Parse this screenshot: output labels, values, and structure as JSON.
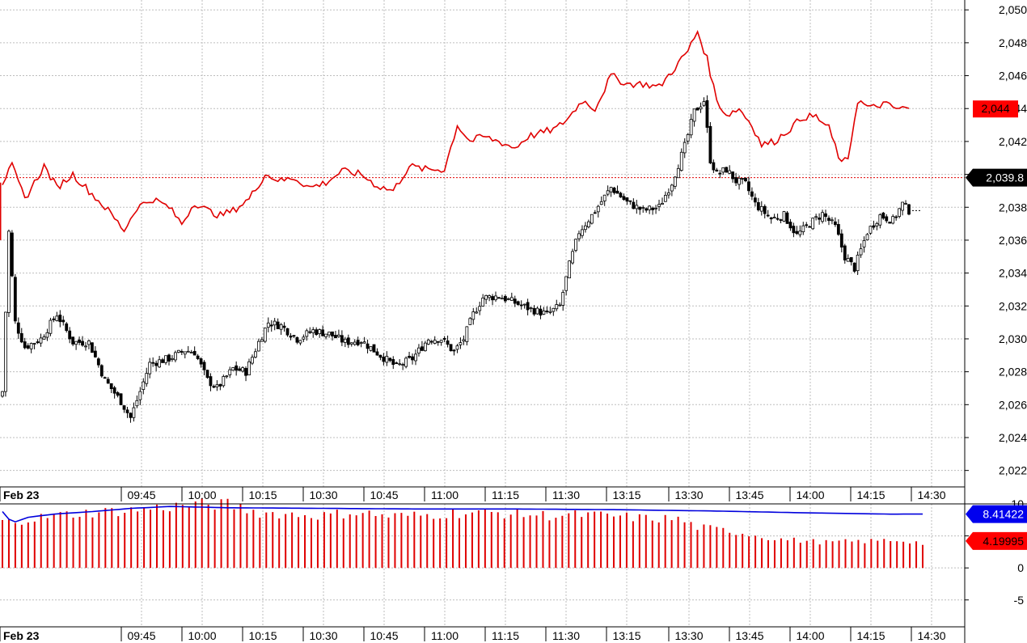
{
  "chart_data": [
    {
      "type": "candlestick",
      "name_hidden": true,
      "x_date_label": "Feb 23",
      "time_labels": [
        "09:45",
        "10:00",
        "10:15",
        "10:30",
        "10:45",
        "11:00",
        "11:15",
        "11:30",
        "13:15",
        "13:30",
        "13:45",
        "14:00",
        "14:15",
        "14:30"
      ],
      "y_ticks": [
        "2,022",
        "2,024",
        "2,026",
        "2,028",
        "2,030",
        "2,032",
        "2,034",
        "2,036",
        "2,038",
        "2,040",
        "2,042",
        "2,044",
        "2,046",
        "2,048",
        "2,050"
      ],
      "ylim": [
        2021.0,
        2050.6
      ],
      "grid": true,
      "candle_close_keypoints": [
        [
          0,
          2026.8
        ],
        [
          2,
          2036.5
        ],
        [
          4,
          2031.0
        ],
        [
          7,
          2029.5
        ],
        [
          12,
          2030.0
        ],
        [
          17,
          2031.5
        ],
        [
          22,
          2029.8
        ],
        [
          27,
          2029.8
        ],
        [
          32,
          2027.5
        ],
        [
          37,
          2026.2
        ],
        [
          40,
          2025.2
        ],
        [
          43,
          2026.8
        ],
        [
          46,
          2028.5
        ],
        [
          52,
          2028.8
        ],
        [
          57,
          2029.3
        ],
        [
          60,
          2029.2
        ],
        [
          64,
          2027.5
        ],
        [
          67,
          2027.0
        ],
        [
          72,
          2028.2
        ],
        [
          76,
          2028.0
        ],
        [
          80,
          2029.8
        ],
        [
          83,
          2031.0
        ],
        [
          87,
          2030.8
        ],
        [
          92,
          2030.0
        ],
        [
          97,
          2030.5
        ],
        [
          102,
          2030.3
        ],
        [
          107,
          2029.8
        ],
        [
          112,
          2029.9
        ],
        [
          118,
          2029.0
        ],
        [
          123,
          2028.3
        ],
        [
          128,
          2028.8
        ],
        [
          133,
          2030.0
        ],
        [
          137,
          2030.0
        ],
        [
          141,
          2029.2
        ],
        [
          144,
          2030.0
        ],
        [
          147,
          2031.5
        ],
        [
          150,
          2032.5
        ],
        [
          155,
          2032.6
        ],
        [
          160,
          2032.2
        ],
        [
          165,
          2031.8
        ],
        [
          170,
          2031.5
        ],
        [
          174,
          2032.0
        ],
        [
          177,
          2034.5
        ],
        [
          180,
          2036.5
        ],
        [
          184,
          2037.5
        ],
        [
          190,
          2039.2
        ],
        [
          195,
          2038.3
        ],
        [
          200,
          2037.8
        ],
        [
          205,
          2038.0
        ],
        [
          209,
          2039.5
        ],
        [
          213,
          2041.7
        ],
        [
          216,
          2043.8
        ],
        [
          219,
          2044.5
        ],
        [
          221,
          2040.9
        ],
        [
          223,
          2040.0
        ],
        [
          226,
          2040.3
        ],
        [
          229,
          2039.6
        ],
        [
          232,
          2039.4
        ],
        [
          235,
          2038.2
        ],
        [
          240,
          2037.3
        ],
        [
          244,
          2037.5
        ],
        [
          248,
          2036.3
        ],
        [
          252,
          2037.0
        ],
        [
          256,
          2037.6
        ],
        [
          260,
          2036.8
        ],
        [
          263,
          2035.0
        ],
        [
          266,
          2034.3
        ],
        [
          270,
          2036.5
        ],
        [
          274,
          2037.5
        ],
        [
          278,
          2037.2
        ],
        [
          281,
          2038.2
        ],
        [
          283,
          2037.8
        ]
      ],
      "candle_count": 284,
      "last_value_label": "2,039.8",
      "line_series": {
        "color": "#e00000",
        "last_value_label": "2,044",
        "keypoints": [
          [
            0,
            2039.5
          ],
          [
            3,
            2040.5
          ],
          [
            7,
            2038.5
          ],
          [
            13,
            2040.5
          ],
          [
            17,
            2039.2
          ],
          [
            22,
            2040.0
          ],
          [
            27,
            2039.0
          ],
          [
            33,
            2037.8
          ],
          [
            38,
            2036.6
          ],
          [
            42,
            2038.0
          ],
          [
            47,
            2038.5
          ],
          [
            52,
            2038.0
          ],
          [
            56,
            2037.0
          ],
          [
            60,
            2038.3
          ],
          [
            64,
            2037.8
          ],
          [
            68,
            2037.5
          ],
          [
            72,
            2037.8
          ],
          [
            77,
            2038.5
          ],
          [
            82,
            2040.0
          ],
          [
            87,
            2039.6
          ],
          [
            91,
            2039.8
          ],
          [
            96,
            2039.2
          ],
          [
            101,
            2039.5
          ],
          [
            106,
            2040.2
          ],
          [
            112,
            2040.0
          ],
          [
            117,
            2039.3
          ],
          [
            122,
            2039.0
          ],
          [
            127,
            2040.5
          ],
          [
            132,
            2040.3
          ],
          [
            138,
            2040.3
          ],
          [
            142,
            2043.0
          ],
          [
            146,
            2042.0
          ],
          [
            150,
            2042.3
          ],
          [
            155,
            2042.0
          ],
          [
            160,
            2041.6
          ],
          [
            164,
            2042.3
          ],
          [
            168,
            2042.5
          ],
          [
            173,
            2042.8
          ],
          [
            177,
            2043.5
          ],
          [
            181,
            2044.5
          ],
          [
            185,
            2044.0
          ],
          [
            190,
            2046.0
          ],
          [
            195,
            2045.5
          ],
          [
            200,
            2045.5
          ],
          [
            205,
            2045.3
          ],
          [
            210,
            2046.5
          ],
          [
            214,
            2047.5
          ],
          [
            217,
            2048.7
          ],
          [
            220,
            2047.0
          ],
          [
            223,
            2044.5
          ],
          [
            226,
            2043.6
          ],
          [
            230,
            2044.0
          ],
          [
            234,
            2043.0
          ],
          [
            237,
            2041.8
          ],
          [
            241,
            2042.0
          ],
          [
            246,
            2042.8
          ],
          [
            250,
            2043.5
          ],
          [
            254,
            2043.5
          ],
          [
            258,
            2042.8
          ],
          [
            262,
            2040.6
          ],
          [
            264,
            2041.0
          ],
          [
            267,
            2044.5
          ],
          [
            271,
            2044.0
          ],
          [
            275,
            2044.3
          ],
          [
            279,
            2044.0
          ],
          [
            283,
            2044.0
          ]
        ]
      },
      "reference_line_value": 2039.8
    },
    {
      "type": "bar",
      "x_date_label": "Feb 23",
      "time_labels": [
        "09:45",
        "10:00",
        "10:15",
        "10:30",
        "10:45",
        "11:00",
        "11:15",
        "11:30",
        "13:15",
        "13:30",
        "13:45",
        "14:00",
        "14:15",
        "14:30"
      ],
      "y_ticks": [
        "10",
        "5",
        "0",
        "-5"
      ],
      "ylim": [
        -9.2,
        10.0
      ],
      "grid": true,
      "bar_color": "#e00000",
      "line_color": "#0000dd",
      "bar_last_label": "4.19995",
      "line_last_label": "8.41422",
      "bar_count": 144,
      "bar_keypoints": [
        [
          0,
          7.8
        ],
        [
          5,
          8.5
        ],
        [
          10,
          9.2
        ],
        [
          15,
          9.6
        ],
        [
          20,
          9.9
        ],
        [
          25,
          10.4
        ],
        [
          30,
          10.9
        ],
        [
          35,
          10.9
        ],
        [
          40,
          9.5
        ],
        [
          45,
          9.2
        ],
        [
          50,
          9.0
        ],
        [
          55,
          9.6
        ],
        [
          60,
          8.9
        ],
        [
          65,
          9.0
        ],
        [
          70,
          9.4
        ],
        [
          75,
          9.5
        ],
        [
          80,
          9.3
        ],
        [
          85,
          9.0
        ],
        [
          90,
          9.1
        ],
        [
          95,
          8.9
        ],
        [
          100,
          8.5
        ],
        [
          105,
          8.4
        ],
        [
          108,
          7.0
        ],
        [
          112,
          6.5
        ],
        [
          116,
          5.8
        ],
        [
          120,
          5.0
        ],
        [
          124,
          4.7
        ],
        [
          128,
          4.4
        ],
        [
          131,
          4.5
        ],
        [
          135,
          4.6
        ],
        [
          138,
          4.8
        ],
        [
          141,
          4.6
        ],
        [
          143,
          4.2
        ]
      ],
      "line_keypoints": [
        [
          0,
          8.8
        ],
        [
          1,
          7.6
        ],
        [
          2,
          7.2
        ],
        [
          4,
          7.9
        ],
        [
          8,
          8.4
        ],
        [
          14,
          8.8
        ],
        [
          20,
          9.3
        ],
        [
          26,
          9.6
        ],
        [
          35,
          9.4
        ],
        [
          50,
          9.3
        ],
        [
          65,
          9.2
        ],
        [
          80,
          9.2
        ],
        [
          95,
          9.1
        ],
        [
          110,
          8.9
        ],
        [
          125,
          8.6
        ],
        [
          138,
          8.4
        ],
        [
          143,
          8.41
        ]
      ]
    }
  ]
}
